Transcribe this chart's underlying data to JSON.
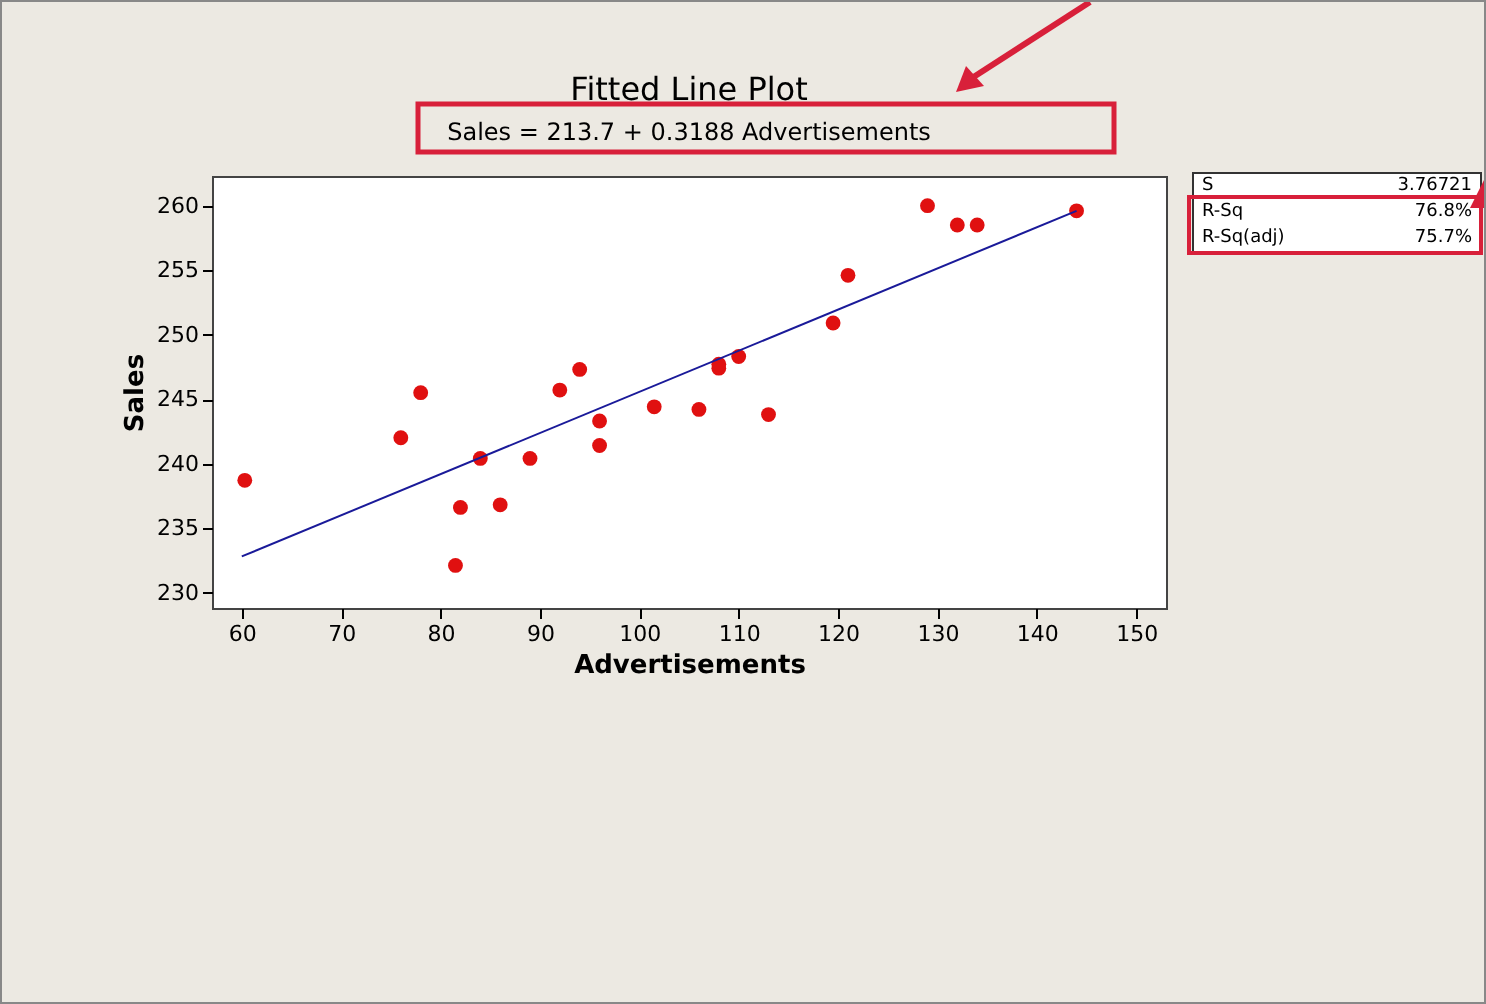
{
  "chart_data": {
    "type": "scatter",
    "title": "Fitted Line Plot",
    "subtitle": "Sales =  213.7 + 0.3188 Advertisements",
    "xlabel": "Advertisements",
    "ylabel": "Sales",
    "xlim": [
      57,
      153
    ],
    "ylim": [
      228.8,
      262.3
    ],
    "xticks": [
      60,
      70,
      80,
      90,
      100,
      110,
      120,
      130,
      140,
      150
    ],
    "yticks": [
      230,
      235,
      240,
      245,
      250,
      255,
      260
    ],
    "grid": false,
    "series": [
      {
        "type": "scatter",
        "marker": "circle",
        "color": "#e01010",
        "x": [
          60.3,
          76,
          78,
          81.5,
          82,
          84,
          86,
          89,
          92,
          94,
          96,
          96,
          101.5,
          106,
          108,
          108,
          110,
          113,
          119.5,
          121,
          129,
          132,
          134,
          144
        ],
        "values": [
          238.7,
          242,
          245.5,
          232.1,
          236.6,
          240.4,
          236.8,
          240.4,
          245.7,
          247.3,
          243.3,
          241.4,
          244.4,
          244.2,
          247.4,
          247.7,
          248.3,
          243.8,
          250.9,
          254.6,
          260,
          258.5,
          258.5,
          259.6
        ]
      },
      {
        "type": "line",
        "marker": "none",
        "color": "#1a1a99",
        "x": [
          60,
          144
        ],
        "values": [
          232.8,
          259.6
        ]
      }
    ],
    "annotations": [
      "S 3.76721",
      "R-Sq 76.8%",
      "R-Sq(adj) 75.7%"
    ]
  }
}
